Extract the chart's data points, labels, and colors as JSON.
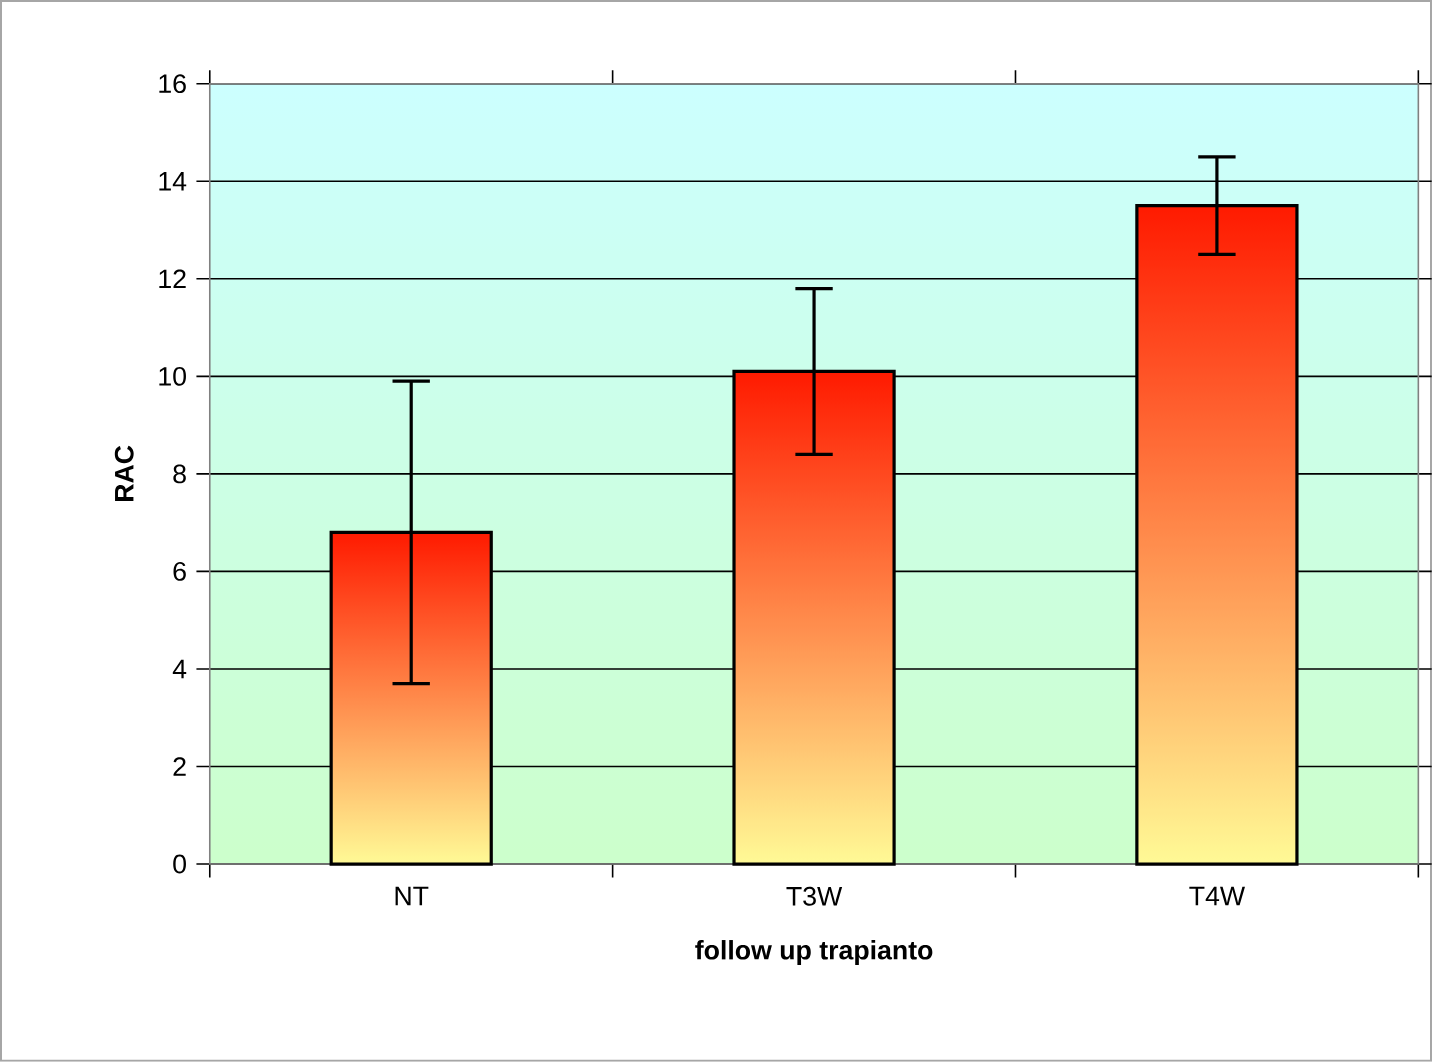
{
  "chart_data": {
    "type": "bar",
    "xlabel": "follow up trapianto",
    "ylabel": "RAC",
    "categories": [
      "NT",
      "T3W",
      "T4W"
    ],
    "values": [
      6.8,
      10.1,
      13.5
    ],
    "errors": [
      3.1,
      1.7,
      1.0
    ],
    "color": "#ff1a00",
    "ylim": [
      0,
      16
    ],
    "yticks": [
      0,
      2,
      4,
      6,
      8,
      10,
      12,
      14,
      16
    ],
    "grid": "y"
  }
}
